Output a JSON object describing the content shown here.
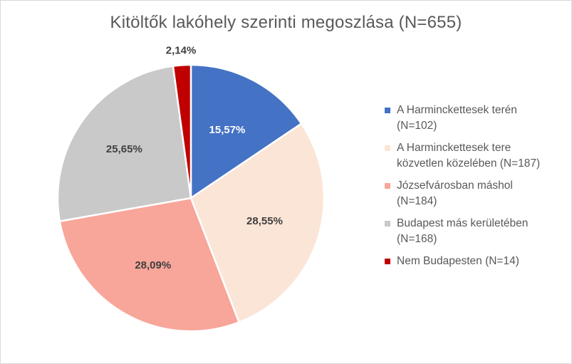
{
  "chart_data": {
    "type": "pie",
    "title": "Kitöltők lakóhely szerinti megoszlása (N=655)",
    "slices": [
      {
        "label": "A Harminckettesek terén (N=102)",
        "legend_lines": [
          "A Harminckettesek terén",
          "(N=102)"
        ],
        "value": 15.57,
        "value_label": "15,57%",
        "color": "#4472c4",
        "label_color": "#ffffff"
      },
      {
        "label": "A Harminckettesek tere közvetlen közelében (N=187)",
        "legend_lines": [
          "A Harminckettesek tere",
          "közvetlen közelében (N=187)"
        ],
        "value": 28.55,
        "value_label": "28,55%",
        "color": "#fbe5d6",
        "label_color": "#404040"
      },
      {
        "label": "Józsefvárosban máshol (N=184)",
        "legend_lines": [
          "Józsefvárosban máshol",
          "(N=184)"
        ],
        "value": 28.09,
        "value_label": "28,09%",
        "color": "#f8a59a",
        "label_color": "#404040"
      },
      {
        "label": "Budapest más kerületében (N=168)",
        "legend_lines": [
          "Budapest más kerületében",
          "(N=168)"
        ],
        "value": 25.65,
        "value_label": "25,65%",
        "color": "#c9c9c9",
        "label_color": "#404040"
      },
      {
        "label": "Nem Budapesten (N=14)",
        "legend_lines": [
          "Nem Budapesten (N=14)"
        ],
        "value": 2.14,
        "value_label": "2,14%",
        "color": "#c00000",
        "label_color": "#404040"
      }
    ],
    "legend_position": "right"
  }
}
